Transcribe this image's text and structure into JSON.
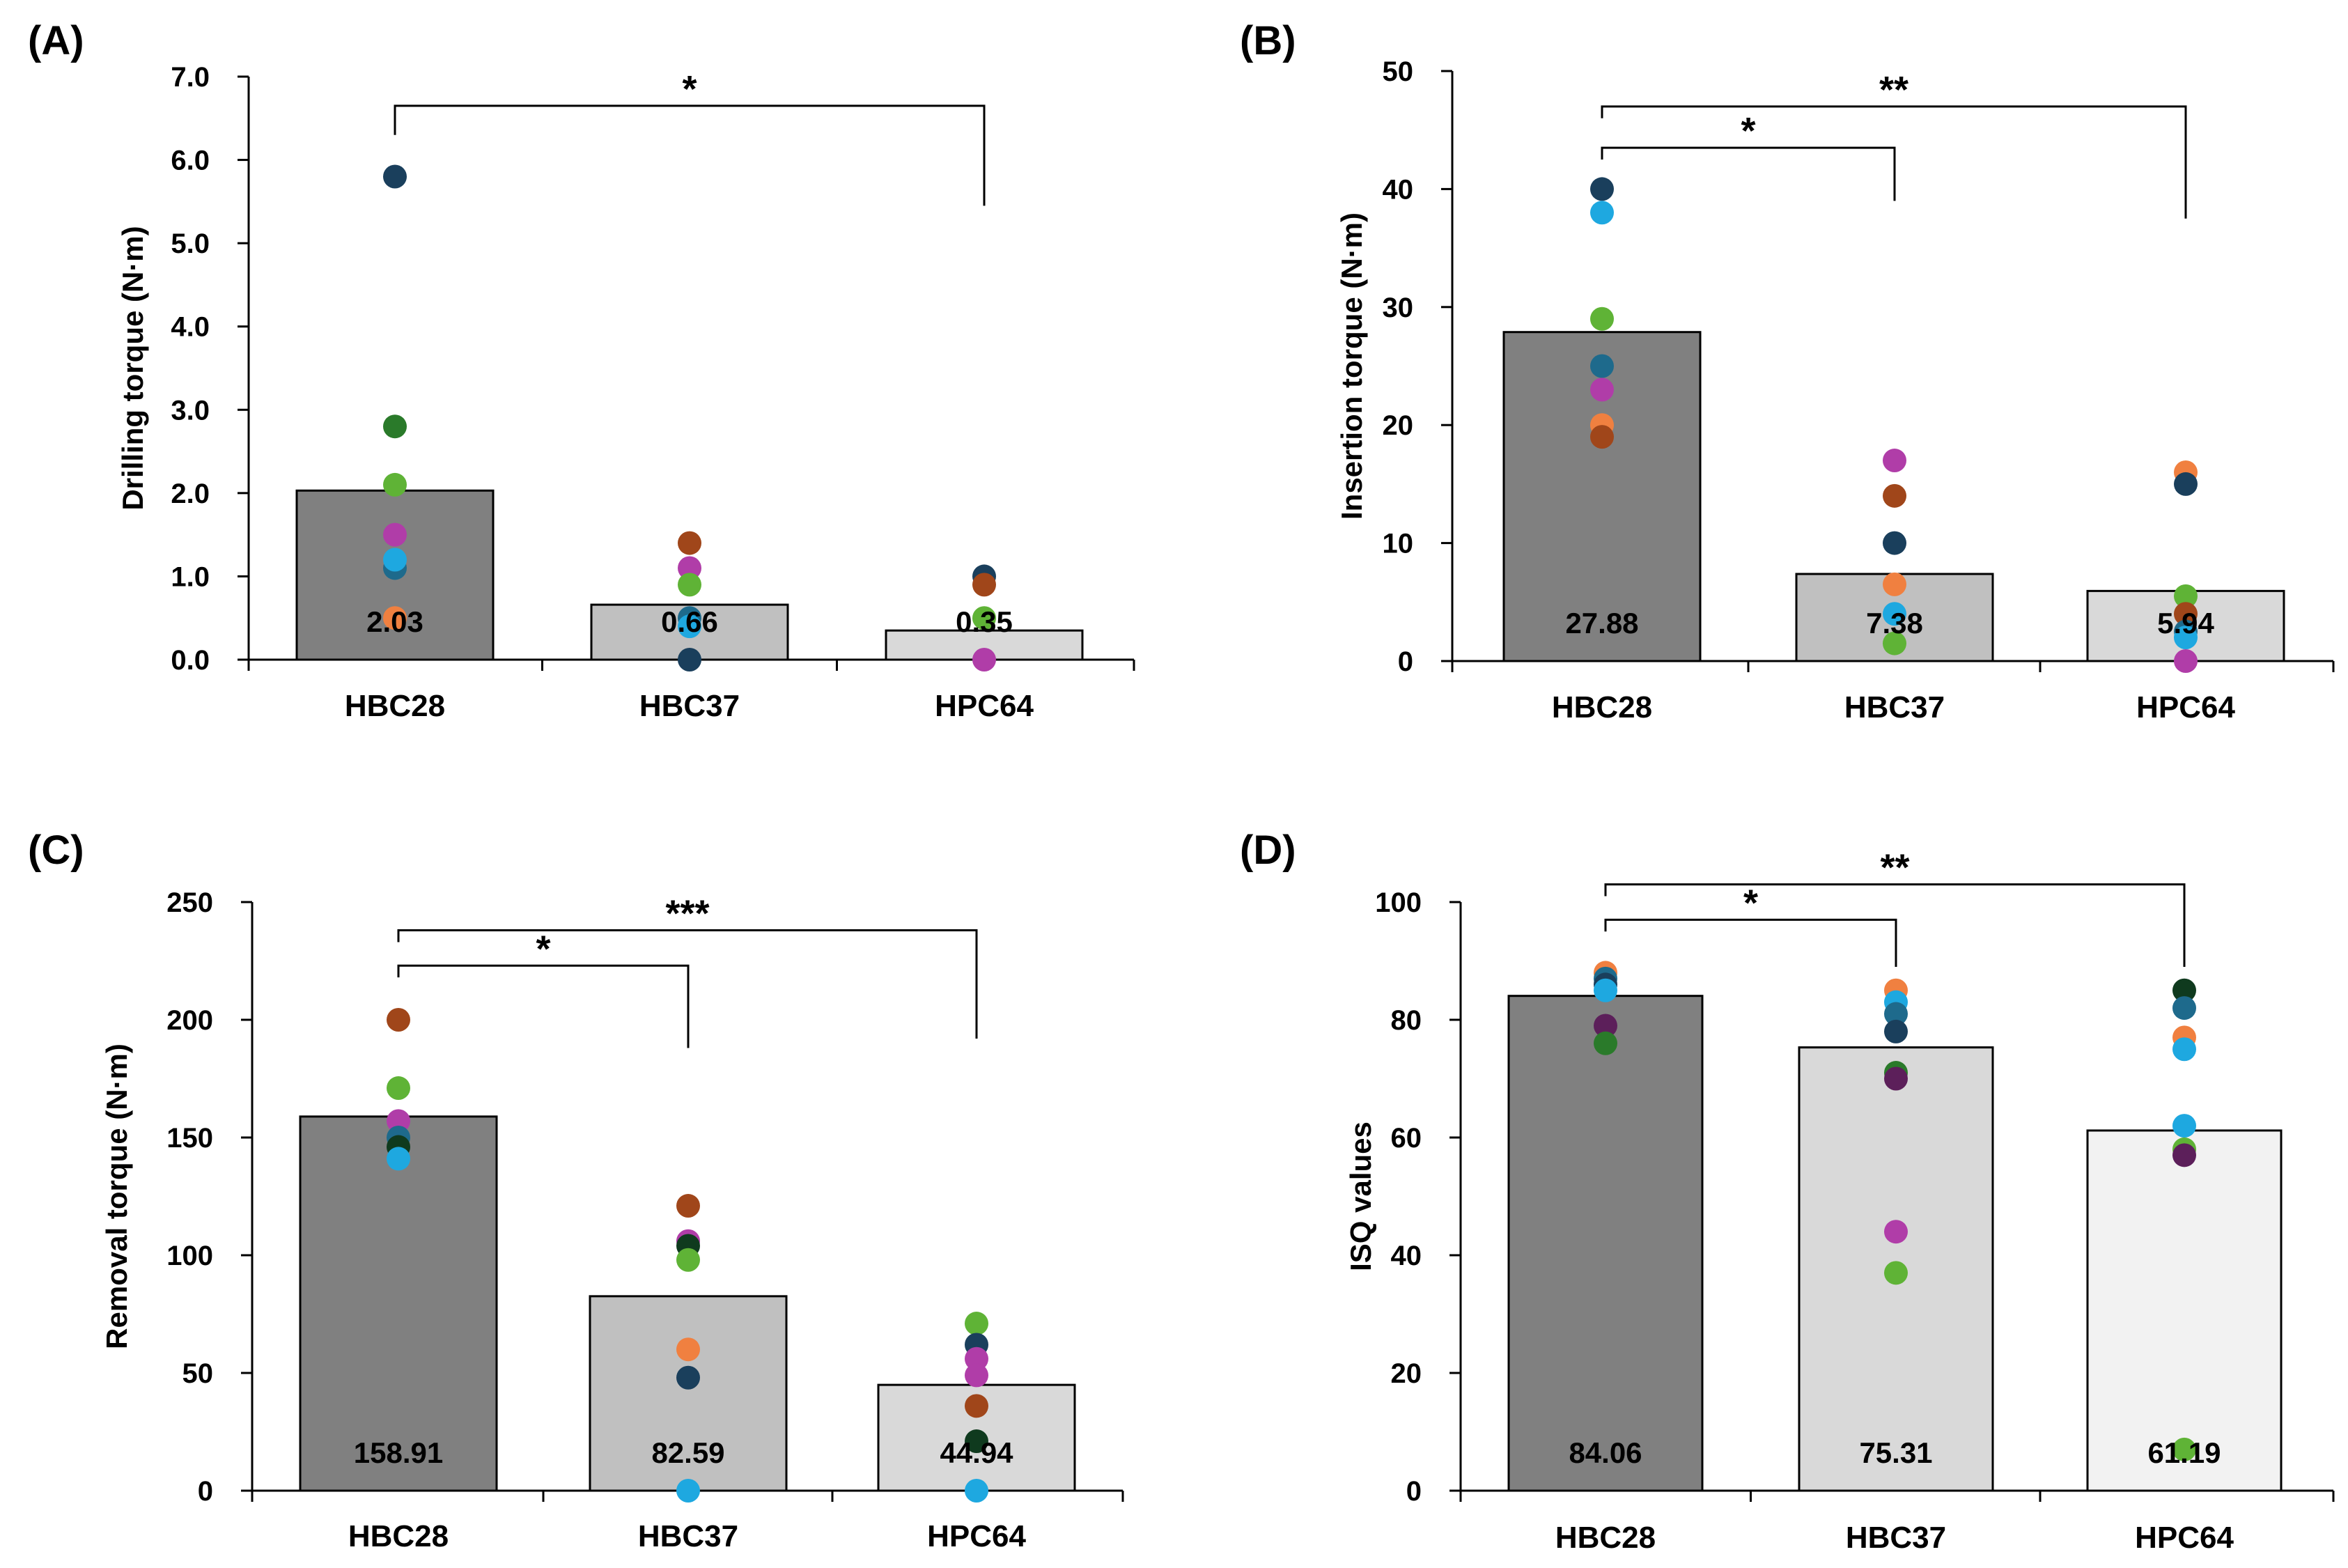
{
  "chart_data": [
    {
      "type": "bar",
      "panel_label": "(A)",
      "title": "",
      "ylabel": "Drilling torque (N·m)",
      "categories": [
        "HBC28",
        "HBC37",
        "HPC64"
      ],
      "values": [
        2.03,
        0.66,
        0.35
      ],
      "value_labels": [
        "2.03",
        "0.66",
        "0.35"
      ],
      "bar_colors": [
        "#808080",
        "#c0c0c0",
        "#d9d9d9"
      ],
      "ylim": [
        0,
        7
      ],
      "yticks": [
        0,
        1,
        2,
        3,
        4,
        5,
        6,
        7
      ],
      "ytick_labels": [
        "0.0",
        "1.0",
        "2.0",
        "3.0",
        "4.0",
        "5.0",
        "6.0",
        "7.0"
      ],
      "points": [
        {
          "cat": 0,
          "y": 5.8,
          "color": "#1a3f5c"
        },
        {
          "cat": 0,
          "y": 2.8,
          "color": "#2a7a2a"
        },
        {
          "cat": 0,
          "y": 2.1,
          "color": "#5fb336"
        },
        {
          "cat": 0,
          "y": 1.5,
          "color": "#b03da8"
        },
        {
          "cat": 0,
          "y": 1.1,
          "color": "#1e6a8c"
        },
        {
          "cat": 0,
          "y": 1.2,
          "color": "#1ea8e0"
        },
        {
          "cat": 0,
          "y": 0.5,
          "color": "#f08040"
        },
        {
          "cat": 1,
          "y": 1.4,
          "color": "#a0461a"
        },
        {
          "cat": 1,
          "y": 1.1,
          "color": "#b03da8"
        },
        {
          "cat": 1,
          "y": 0.9,
          "color": "#5fb336"
        },
        {
          "cat": 1,
          "y": 0.5,
          "color": "#1e6a8c"
        },
        {
          "cat": 1,
          "y": 0.4,
          "color": "#1ea8e0"
        },
        {
          "cat": 1,
          "y": 0.0,
          "color": "#1a3f5c"
        },
        {
          "cat": 2,
          "y": 1.0,
          "color": "#1a3f5c"
        },
        {
          "cat": 2,
          "y": 0.9,
          "color": "#a0461a"
        },
        {
          "cat": 2,
          "y": 0.5,
          "color": "#5fb336"
        },
        {
          "cat": 2,
          "y": 0.0,
          "color": "#b03da8"
        }
      ],
      "significance": [
        {
          "from": 0,
          "to": 2,
          "y_top": 6.65,
          "y_left": 6.3,
          "y_right": 5.45,
          "label": "*"
        }
      ]
    },
    {
      "type": "bar",
      "panel_label": "(B)",
      "title": "",
      "ylabel": "Insertion torque (N·m)",
      "categories": [
        "HBC28",
        "HBC37",
        "HPC64"
      ],
      "values": [
        27.88,
        7.38,
        5.94
      ],
      "value_labels": [
        "27.88",
        "7.38",
        "5.94"
      ],
      "bar_colors": [
        "#808080",
        "#c0c0c0",
        "#d9d9d9"
      ],
      "ylim": [
        0,
        50
      ],
      "yticks": [
        0,
        10,
        20,
        30,
        40,
        50
      ],
      "ytick_labels": [
        "0",
        "10",
        "20",
        "30",
        "40",
        "50"
      ],
      "points": [
        {
          "cat": 0,
          "y": 40,
          "color": "#1a3f5c"
        },
        {
          "cat": 0,
          "y": 38,
          "color": "#1ea8e0"
        },
        {
          "cat": 0,
          "y": 29,
          "color": "#5fb336"
        },
        {
          "cat": 0,
          "y": 25,
          "color": "#1e6a8c"
        },
        {
          "cat": 0,
          "y": 23,
          "color": "#b03da8"
        },
        {
          "cat": 0,
          "y": 20,
          "color": "#f08040"
        },
        {
          "cat": 0,
          "y": 19,
          "color": "#a0461a"
        },
        {
          "cat": 1,
          "y": 17,
          "color": "#b03da8"
        },
        {
          "cat": 1,
          "y": 14,
          "color": "#a0461a"
        },
        {
          "cat": 1,
          "y": 10,
          "color": "#1a3f5c"
        },
        {
          "cat": 1,
          "y": 6.5,
          "color": "#f08040"
        },
        {
          "cat": 1,
          "y": 4,
          "color": "#1ea8e0"
        },
        {
          "cat": 1,
          "y": 1.5,
          "color": "#5fb336"
        },
        {
          "cat": 2,
          "y": 16,
          "color": "#f08040"
        },
        {
          "cat": 2,
          "y": 15,
          "color": "#1a3f5c"
        },
        {
          "cat": 2,
          "y": 5.5,
          "color": "#5fb336"
        },
        {
          "cat": 2,
          "y": 4,
          "color": "#a0461a"
        },
        {
          "cat": 2,
          "y": 2.5,
          "color": "#1e6a8c"
        },
        {
          "cat": 2,
          "y": 2,
          "color": "#1ea8e0"
        },
        {
          "cat": 2,
          "y": 0,
          "color": "#b03da8"
        }
      ],
      "significance": [
        {
          "from": 0,
          "to": 1,
          "y_top": 43.5,
          "y_left": 42.5,
          "y_right": 39,
          "label": "*"
        },
        {
          "from": 0,
          "to": 2,
          "y_top": 47,
          "y_left": 46,
          "y_right": 37.5,
          "label": "**"
        }
      ]
    },
    {
      "type": "bar",
      "panel_label": "(C)",
      "title": "",
      "ylabel": "Removal torque (N·m)",
      "categories": [
        "HBC28",
        "HBC37",
        "HPC64"
      ],
      "values": [
        158.91,
        82.59,
        44.94
      ],
      "value_labels": [
        "158.91",
        "82.59",
        "44.94"
      ],
      "bar_colors": [
        "#808080",
        "#c0c0c0",
        "#d9d9d9"
      ],
      "ylim": [
        0,
        250
      ],
      "yticks": [
        0,
        50,
        100,
        150,
        200,
        250
      ],
      "ytick_labels": [
        "0",
        "50",
        "100",
        "150",
        "200",
        "250"
      ],
      "points": [
        {
          "cat": 0,
          "y": 200,
          "color": "#a0461a"
        },
        {
          "cat": 0,
          "y": 171,
          "color": "#5fb336"
        },
        {
          "cat": 0,
          "y": 157,
          "color": "#b03da8"
        },
        {
          "cat": 0,
          "y": 150,
          "color": "#1e6a8c"
        },
        {
          "cat": 0,
          "y": 146,
          "color": "#0f3a1e"
        },
        {
          "cat": 0,
          "y": 141,
          "color": "#1ea8e0"
        },
        {
          "cat": 1,
          "y": 121,
          "color": "#a0461a"
        },
        {
          "cat": 1,
          "y": 106,
          "color": "#b03da8"
        },
        {
          "cat": 1,
          "y": 104,
          "color": "#0f3a1e"
        },
        {
          "cat": 1,
          "y": 98,
          "color": "#5fb336"
        },
        {
          "cat": 1,
          "y": 60,
          "color": "#f08040"
        },
        {
          "cat": 1,
          "y": 48,
          "color": "#1a3f5c"
        },
        {
          "cat": 1,
          "y": 0,
          "color": "#1ea8e0"
        },
        {
          "cat": 2,
          "y": 71,
          "color": "#5fb336"
        },
        {
          "cat": 2,
          "y": 62,
          "color": "#1a3f5c"
        },
        {
          "cat": 2,
          "y": 56,
          "color": "#b03da8"
        },
        {
          "cat": 2,
          "y": 49,
          "color": "#b03da8"
        },
        {
          "cat": 2,
          "y": 36,
          "color": "#a0461a"
        },
        {
          "cat": 2,
          "y": 21,
          "color": "#0f3a1e"
        },
        {
          "cat": 2,
          "y": 0,
          "color": "#1ea8e0"
        }
      ],
      "significance": [
        {
          "from": 0,
          "to": 1,
          "y_top": 223,
          "y_left": 218,
          "y_right": 188,
          "label": "*"
        },
        {
          "from": 0,
          "to": 2,
          "y_top": 238,
          "y_left": 233,
          "y_right": 192,
          "label": "***"
        }
      ]
    },
    {
      "type": "bar",
      "panel_label": "(D)",
      "title": "",
      "ylabel": "ISQ values",
      "categories": [
        "HBC28",
        "HBC37",
        "HPC64"
      ],
      "values": [
        84.06,
        75.31,
        61.19
      ],
      "value_labels": [
        "84.06",
        "75.31",
        "61.19"
      ],
      "bar_colors": [
        "#808080",
        "#d9d9d9",
        "#f2f2f2"
      ],
      "ylim": [
        0,
        100
      ],
      "yticks": [
        0,
        20,
        40,
        60,
        80,
        100
      ],
      "ytick_labels": [
        "0",
        "20",
        "40",
        "60",
        "80",
        "100"
      ],
      "points": [
        {
          "cat": 0,
          "y": 88,
          "color": "#f08040"
        },
        {
          "cat": 0,
          "y": 87,
          "color": "#1e6a8c"
        },
        {
          "cat": 0,
          "y": 86,
          "color": "#1a3f5c"
        },
        {
          "cat": 0,
          "y": 85,
          "color": "#1ea8e0"
        },
        {
          "cat": 0,
          "y": 79,
          "color": "#5c1f5a"
        },
        {
          "cat": 0,
          "y": 76,
          "color": "#2a7a2a"
        },
        {
          "cat": 1,
          "y": 85,
          "color": "#f08040"
        },
        {
          "cat": 1,
          "y": 83,
          "color": "#1ea8e0"
        },
        {
          "cat": 1,
          "y": 81,
          "color": "#1e6a8c"
        },
        {
          "cat": 1,
          "y": 78,
          "color": "#1a3f5c"
        },
        {
          "cat": 1,
          "y": 71,
          "color": "#2a7a2a"
        },
        {
          "cat": 1,
          "y": 70,
          "color": "#5c1f5a"
        },
        {
          "cat": 1,
          "y": 44,
          "color": "#b03da8"
        },
        {
          "cat": 1,
          "y": 37,
          "color": "#5fb336"
        },
        {
          "cat": 2,
          "y": 85,
          "color": "#0f3a1e"
        },
        {
          "cat": 2,
          "y": 82,
          "color": "#1e6a8c"
        },
        {
          "cat": 2,
          "y": 77,
          "color": "#f08040"
        },
        {
          "cat": 2,
          "y": 75,
          "color": "#1ea8e0"
        },
        {
          "cat": 2,
          "y": 62,
          "color": "#1ea8e0"
        },
        {
          "cat": 2,
          "y": 58,
          "color": "#5fb336"
        },
        {
          "cat": 2,
          "y": 57,
          "color": "#5c1f5a"
        },
        {
          "cat": 2,
          "y": 7,
          "color": "#5fb336"
        }
      ],
      "significance": [
        {
          "from": 0,
          "to": 1,
          "y_top": 97,
          "y_left": 95,
          "y_right": 89,
          "label": "*"
        },
        {
          "from": 0,
          "to": 2,
          "y_top": 103,
          "y_left": 101,
          "y_right": 89,
          "label": "**"
        }
      ]
    }
  ]
}
